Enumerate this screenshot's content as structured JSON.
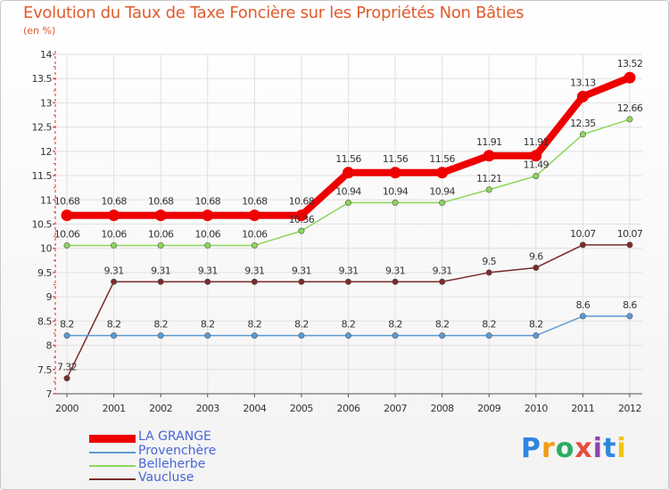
{
  "title": "Evolution du Taux de Taxe Foncière sur les Propriétés Non Bâties",
  "subtitle": "(en %)",
  "brand": {
    "letters": [
      "P",
      "r",
      "o",
      "x",
      "i",
      "t",
      "i"
    ],
    "colors": [
      "#2e86de",
      "#f39c12",
      "#27ae60",
      "#e74c3c",
      "#8e44ad",
      "#2e86de",
      "#f1c40f"
    ]
  },
  "chart_data": {
    "type": "line",
    "title": "Evolution du Taux de Taxe Foncière sur les Propriétés Non Bâties",
    "ylabel": "(en %)",
    "xlabel": "",
    "x": [
      "2000",
      "2001",
      "2002",
      "2003",
      "2004",
      "2005",
      "2006",
      "2007",
      "2008",
      "2009",
      "2010",
      "2011",
      "2012"
    ],
    "ylim": [
      7,
      14
    ],
    "yticks": [
      "7",
      "7.5",
      "8",
      "8.5",
      "9",
      "9.5",
      "10",
      "10.5",
      "11",
      "11.5",
      "12",
      "12.5",
      "13",
      "13.5",
      "14"
    ],
    "grid": true,
    "legend_position": "bottom-left",
    "series": [
      {
        "name": "LA GRANGE",
        "color": "#ee0000",
        "values": [
          10.68,
          10.68,
          10.68,
          10.68,
          10.68,
          10.68,
          11.56,
          11.56,
          11.56,
          11.91,
          11.91,
          13.13,
          13.52
        ],
        "labels": [
          "10.68",
          "10.68",
          "10.68",
          "10.68",
          "10.68",
          "10.68",
          "11.56",
          "11.56",
          "11.56",
          "11.91",
          "11.91",
          "13.13",
          "13.52"
        ]
      },
      {
        "name": "Provenchère",
        "color": "#5b9bd5",
        "values": [
          8.2,
          8.2,
          8.2,
          8.2,
          8.2,
          8.2,
          8.2,
          8.2,
          8.2,
          8.2,
          8.2,
          8.6,
          8.6
        ],
        "labels": [
          "8.2",
          "8.2",
          "8.2",
          "8.2",
          "8.2",
          "8.2",
          "8.2",
          "8.2",
          "8.2",
          "8.2",
          "8.2",
          "8.6",
          "8.6"
        ]
      },
      {
        "name": "Belleherbe",
        "color": "#8cd65a",
        "values": [
          10.06,
          10.06,
          10.06,
          10.06,
          10.06,
          10.36,
          10.94,
          10.94,
          10.94,
          11.21,
          11.49,
          12.35,
          12.66
        ],
        "labels": [
          "10.06",
          "10.06",
          "10.06",
          "10.06",
          "10.06",
          "10.36",
          "10.94",
          "10.94",
          "10.94",
          "11.21",
          "11.49",
          "12.35",
          "12.66"
        ]
      },
      {
        "name": "Vaucluse",
        "color": "#7b2a2a",
        "values": [
          7.32,
          9.31,
          9.31,
          9.31,
          9.31,
          9.31,
          9.31,
          9.31,
          9.31,
          9.5,
          9.6,
          10.07,
          10.07
        ],
        "labels": [
          "7.32",
          "9.31",
          "9.31",
          "9.31",
          "9.31",
          "9.31",
          "9.31",
          "9.31",
          "9.31",
          "9.5",
          "9.6",
          "10.07",
          "10.07"
        ]
      }
    ]
  }
}
